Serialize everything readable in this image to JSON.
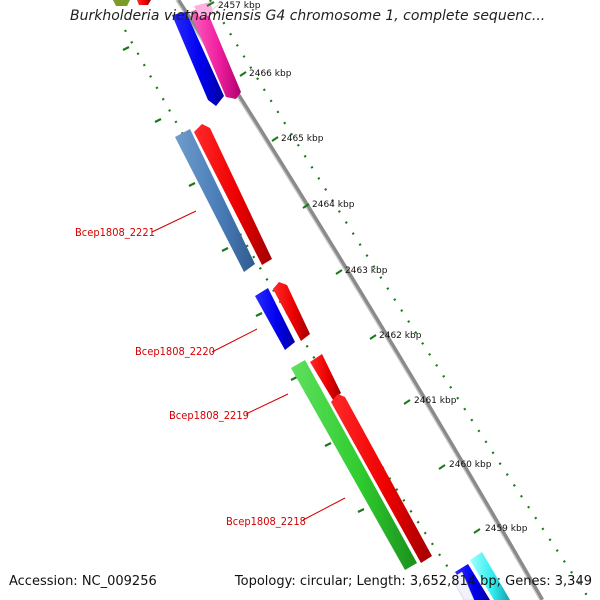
{
  "title": "Burkholderia vietnamiensis G4 chromosome 1, complete sequenc...",
  "accession": "Accession: NC_009256",
  "summary": "Topology: circular; Length: 3,652,814 bp; Genes: 3,349",
  "colors": {
    "backbone": "#888888",
    "tick": "#1a7a1a",
    "gene_label": "#d40000"
  },
  "kbp_labels": [
    "2457 kbp",
    "2466 kbp",
    "2465 kbp",
    "2464 kbp",
    "2463 kbp",
    "2462 kbp",
    "2461 kbp",
    "2460 kbp",
    "2459 kbp"
  ],
  "gene_labels": [
    "Bcep1808_2221",
    "Bcep1808_2220",
    "Bcep1808_2219",
    "Bcep1808_2218"
  ]
}
